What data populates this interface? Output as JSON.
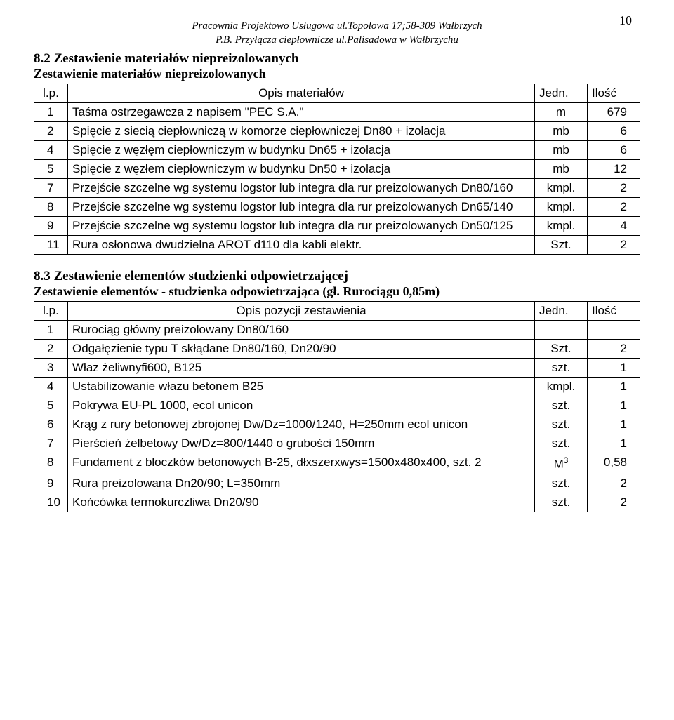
{
  "header": {
    "line1": "Pracownia Projektowo Usługowa ul.Topolowa 17;58-309 Wałbrzych",
    "line2": "P.B. Przyłącza ciepłownicze ul.Palisadowa w Wałbrzychu",
    "pageNumber": "10"
  },
  "section1": {
    "title": "8.2  Zestawienie materiałów niepreizolowanych",
    "subtitle": "Zestawienie materiałów niepreizolowanych",
    "headers": {
      "lp": "l.p.",
      "desc": "Opis materiałów",
      "unit": "Jedn.",
      "qty": "Ilość"
    },
    "rows": [
      {
        "lp": "1",
        "desc": "Taśma ostrzegawcza z napisem \"PEC S.A.\"",
        "unit": "m",
        "qty": "679"
      },
      {
        "lp": "2",
        "desc": "Spięcie z siecią ciepłowniczą w komorze ciepłowniczej Dn80 + izolacja",
        "unit": "mb",
        "qty": "6"
      },
      {
        "lp": "4",
        "desc": "Spięcie z węzłęm ciepłowniczym w budynku Dn65 + izolacja",
        "unit": "mb",
        "qty": "6"
      },
      {
        "lp": "5",
        "desc": "Spięcie z węzłem ciepłowniczym w budynku Dn50 + izolacja",
        "unit": "mb",
        "qty": "12"
      },
      {
        "lp": "7",
        "desc": "Przejście szczelne wg systemu logstor lub integra dla rur preizolowanych Dn80/160",
        "unit": "kmpl.",
        "qty": "2"
      },
      {
        "lp": "8",
        "desc": "Przejście szczelne wg systemu logstor lub integra dla rur preizolowanych Dn65/140",
        "unit": "kmpl.",
        "qty": "2"
      },
      {
        "lp": "9",
        "desc": "Przejście szczelne wg systemu logstor lub integra dla rur preizolowanych Dn50/125",
        "unit": "kmpl.",
        "qty": "4"
      },
      {
        "lp": "11",
        "desc": "Rura osłonowa dwudzielna AROT d110 dla kabli elektr.",
        "unit": "Szt.",
        "qty": "2"
      }
    ]
  },
  "section2": {
    "title": "8.3  Zestawienie elementów studzienki odpowietrzającej",
    "subtitle": "Zestawienie elementów - studzienka odpowietrzająca (gł. Rurociągu 0,85m)",
    "headers": {
      "lp": "l.p.",
      "desc": "Opis pozycji zestawienia",
      "unit": "Jedn.",
      "qty": "Ilość"
    },
    "rows": [
      {
        "lp": "1",
        "desc": "Rurociąg główny preizolowany Dn80/160",
        "unit": "",
        "qty": ""
      },
      {
        "lp": "2",
        "desc": "Odgałęzienie typu T skłądane Dn80/160, Dn20/90",
        "unit": "Szt.",
        "qty": "2"
      },
      {
        "lp": "3",
        "desc": "Właz żeliwnyfi600, B125",
        "unit": "szt.",
        "qty": "1"
      },
      {
        "lp": "4",
        "desc": "Ustabilizowanie włazu betonem B25",
        "unit": "kmpl.",
        "qty": "1"
      },
      {
        "lp": "5",
        "desc": "Pokrywa EU-PL 1000, ecol unicon",
        "unit": "szt.",
        "qty": "1"
      },
      {
        "lp": "6",
        "desc": "Krąg z rury betonowej zbrojonej Dw/Dz=1000/1240, H=250mm ecol unicon",
        "unit": "szt.",
        "qty": "1"
      },
      {
        "lp": "7",
        "desc": "Pierścień żelbetowy Dw/Dz=800/1440 o grubości 150mm",
        "unit": "szt.",
        "qty": "1"
      },
      {
        "lp": "8",
        "desc": "Fundament z bloczków betonowych B-25, dłxszerxwys=1500x480x400, szt. 2",
        "unit": "M³",
        "qty": "0,58",
        "unitHtml": "M<sup>3</sup>"
      },
      {
        "lp": "9",
        "desc": "Rura preizolowana Dn20/90; L=350mm",
        "unit": "szt.",
        "qty": "2"
      },
      {
        "lp": "10",
        "desc": "Końcówka termokurczliwa Dn20/90",
        "unit": "szt.",
        "qty": "2"
      }
    ]
  }
}
